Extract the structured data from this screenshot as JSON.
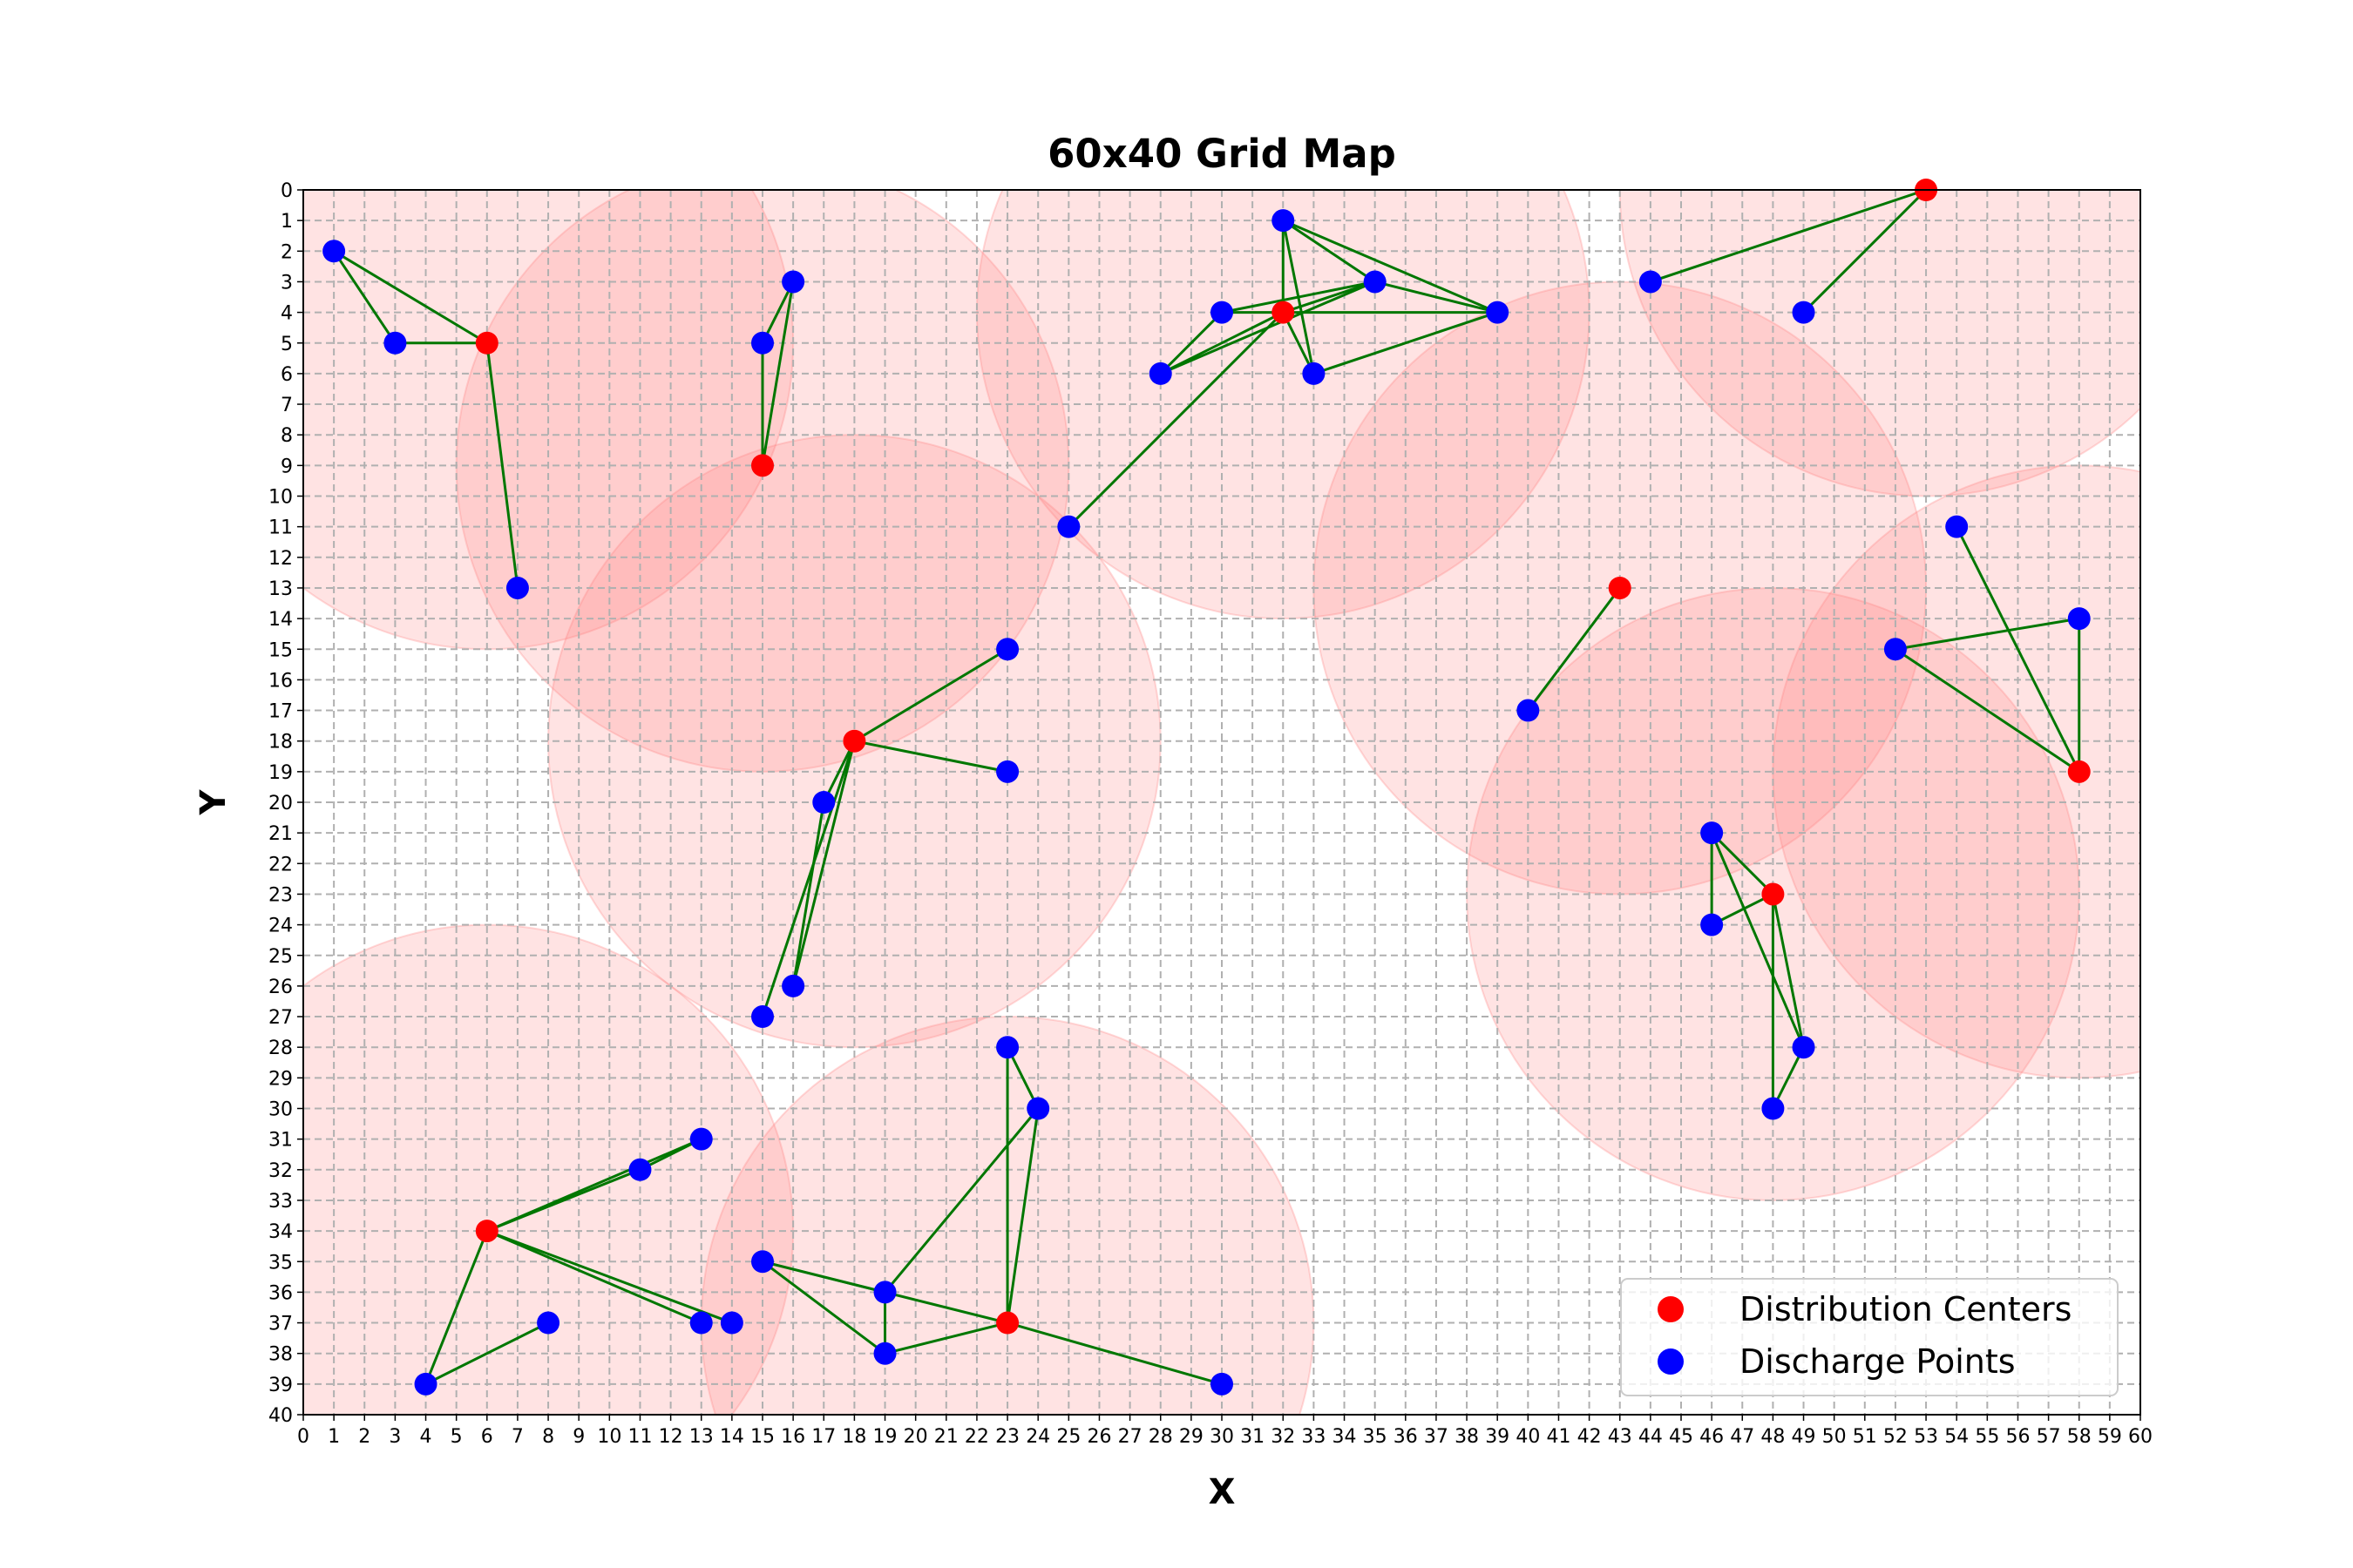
{
  "chart_data": {
    "type": "scatter",
    "title": "60x40 Grid Map",
    "xlabel": "X",
    "ylabel": "Y",
    "xlim": [
      0,
      60
    ],
    "ylim": [
      0,
      40
    ],
    "y_inverted": true,
    "grid": true,
    "legend_position": "lower-right",
    "colors": {
      "distribution": "#ff0000",
      "discharge": "#0000ff",
      "edge": "#007700",
      "coverage": "#ff8080",
      "grid": "#b0b0b0"
    },
    "coverage_radius": 10,
    "distribution_centers": {
      "name": "Distribution Centers",
      "points": [
        [
          53,
          0
        ],
        [
          32,
          4
        ],
        [
          6,
          5
        ],
        [
          15,
          9
        ],
        [
          43,
          13
        ],
        [
          18,
          18
        ],
        [
          58,
          19
        ],
        [
          48,
          23
        ],
        [
          6,
          34
        ],
        [
          23,
          37
        ]
      ]
    },
    "discharge_points": {
      "name": "Discharge Points",
      "points": [
        [
          32,
          1
        ],
        [
          1,
          2
        ],
        [
          16,
          3
        ],
        [
          35,
          3
        ],
        [
          44,
          3
        ],
        [
          30,
          4
        ],
        [
          39,
          4
        ],
        [
          49,
          4
        ],
        [
          3,
          5
        ],
        [
          15,
          5
        ],
        [
          28,
          6
        ],
        [
          33,
          6
        ],
        [
          25,
          11
        ],
        [
          54,
          11
        ],
        [
          7,
          13
        ],
        [
          58,
          14
        ],
        [
          23,
          15
        ],
        [
          52,
          15
        ],
        [
          40,
          17
        ],
        [
          23,
          19
        ],
        [
          17,
          20
        ],
        [
          46,
          21
        ],
        [
          46,
          24
        ],
        [
          16,
          26
        ],
        [
          15,
          27
        ],
        [
          23,
          28
        ],
        [
          49,
          28
        ],
        [
          24,
          30
        ],
        [
          48,
          30
        ],
        [
          13,
          31
        ],
        [
          11,
          32
        ],
        [
          15,
          35
        ],
        [
          19,
          36
        ],
        [
          8,
          37
        ],
        [
          13,
          37
        ],
        [
          14,
          37
        ],
        [
          19,
          38
        ],
        [
          4,
          39
        ],
        [
          30,
          39
        ]
      ]
    },
    "edges": [
      [
        [
          1,
          2
        ],
        [
          3,
          5
        ]
      ],
      [
        [
          1,
          2
        ],
        [
          6,
          5
        ]
      ],
      [
        [
          3,
          5
        ],
        [
          6,
          5
        ]
      ],
      [
        [
          6,
          5
        ],
        [
          7,
          13
        ]
      ],
      [
        [
          15,
          5
        ],
        [
          16,
          3
        ]
      ],
      [
        [
          15,
          5
        ],
        [
          15,
          9
        ]
      ],
      [
        [
          16,
          3
        ],
        [
          15,
          9
        ]
      ],
      [
        [
          32,
          1
        ],
        [
          32,
          4
        ]
      ],
      [
        [
          32,
          1
        ],
        [
          35,
          3
        ]
      ],
      [
        [
          32,
          1
        ],
        [
          39,
          4
        ]
      ],
      [
        [
          32,
          1
        ],
        [
          33,
          6
        ]
      ],
      [
        [
          30,
          4
        ],
        [
          32,
          4
        ]
      ],
      [
        [
          30,
          4
        ],
        [
          35,
          3
        ]
      ],
      [
        [
          30,
          4
        ],
        [
          28,
          6
        ]
      ],
      [
        [
          32,
          4
        ],
        [
          35,
          3
        ]
      ],
      [
        [
          32,
          4
        ],
        [
          39,
          4
        ]
      ],
      [
        [
          32,
          4
        ],
        [
          33,
          6
        ]
      ],
      [
        [
          32,
          4
        ],
        [
          28,
          6
        ]
      ],
      [
        [
          32,
          4
        ],
        [
          25,
          11
        ]
      ],
      [
        [
          28,
          6
        ],
        [
          35,
          3
        ]
      ],
      [
        [
          35,
          3
        ],
        [
          39,
          4
        ]
      ],
      [
        [
          33,
          6
        ],
        [
          39,
          4
        ]
      ],
      [
        [
          53,
          0
        ],
        [
          44,
          3
        ]
      ],
      [
        [
          53,
          0
        ],
        [
          49,
          4
        ]
      ],
      [
        [
          43,
          13
        ],
        [
          40,
          17
        ]
      ],
      [
        [
          18,
          18
        ],
        [
          23,
          15
        ]
      ],
      [
        [
          18,
          18
        ],
        [
          23,
          19
        ]
      ],
      [
        [
          18,
          18
        ],
        [
          17,
          20
        ]
      ],
      [
        [
          18,
          18
        ],
        [
          16,
          26
        ]
      ],
      [
        [
          18,
          18
        ],
        [
          15,
          27
        ]
      ],
      [
        [
          17,
          20
        ],
        [
          16,
          26
        ]
      ],
      [
        [
          54,
          11
        ],
        [
          58,
          19
        ]
      ],
      [
        [
          52,
          15
        ],
        [
          58,
          14
        ]
      ],
      [
        [
          52,
          15
        ],
        [
          58,
          19
        ]
      ],
      [
        [
          58,
          14
        ],
        [
          58,
          19
        ]
      ],
      [
        [
          46,
          21
        ],
        [
          48,
          23
        ]
      ],
      [
        [
          46,
          21
        ],
        [
          46,
          24
        ]
      ],
      [
        [
          46,
          21
        ],
        [
          49,
          28
        ]
      ],
      [
        [
          48,
          23
        ],
        [
          46,
          24
        ]
      ],
      [
        [
          48,
          23
        ],
        [
          49,
          28
        ]
      ],
      [
        [
          48,
          23
        ],
        [
          48,
          30
        ]
      ],
      [
        [
          49,
          28
        ],
        [
          48,
          30
        ]
      ],
      [
        [
          6,
          34
        ],
        [
          11,
          32
        ]
      ],
      [
        [
          6,
          34
        ],
        [
          13,
          31
        ]
      ],
      [
        [
          11,
          32
        ],
        [
          13,
          31
        ]
      ],
      [
        [
          6,
          34
        ],
        [
          13,
          37
        ]
      ],
      [
        [
          6,
          34
        ],
        [
          14,
          37
        ]
      ],
      [
        [
          6,
          34
        ],
        [
          4,
          39
        ]
      ],
      [
        [
          4,
          39
        ],
        [
          8,
          37
        ]
      ],
      [
        [
          23,
          28
        ],
        [
          24,
          30
        ]
      ],
      [
        [
          23,
          28
        ],
        [
          23,
          37
        ]
      ],
      [
        [
          24,
          30
        ],
        [
          23,
          37
        ]
      ],
      [
        [
          24,
          30
        ],
        [
          19,
          36
        ]
      ],
      [
        [
          15,
          35
        ],
        [
          19,
          36
        ]
      ],
      [
        [
          15,
          35
        ],
        [
          19,
          38
        ]
      ],
      [
        [
          15,
          35
        ],
        [
          23,
          37
        ]
      ],
      [
        [
          19,
          36
        ],
        [
          19,
          38
        ]
      ],
      [
        [
          19,
          38
        ],
        [
          23,
          37
        ]
      ],
      [
        [
          23,
          37
        ],
        [
          30,
          39
        ]
      ]
    ]
  }
}
